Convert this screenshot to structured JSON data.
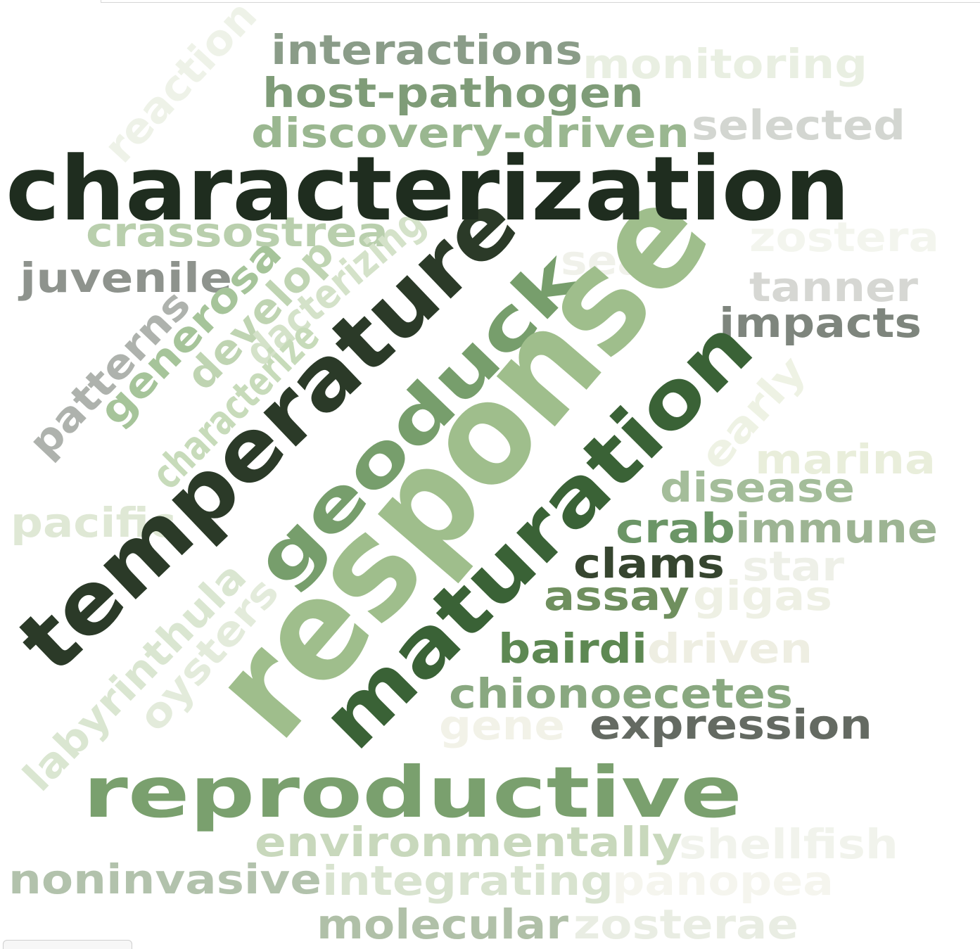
{
  "words": [
    {
      "text": "characterization",
      "color": "#1f2d1f"
    },
    {
      "text": "response",
      "color": "#9fbe8c"
    },
    {
      "text": "temperature",
      "color": "#2b3a28"
    },
    {
      "text": "maturation",
      "color": "#3a6236"
    },
    {
      "text": "geoduck",
      "color": "#779e6c"
    },
    {
      "text": "reproductive",
      "color": "#7aa06e"
    },
    {
      "text": "interactions",
      "color": "#8a9c88"
    },
    {
      "text": "monitoring",
      "color": "#e9efe2"
    },
    {
      "text": "host-pathogen",
      "color": "#7f9c78"
    },
    {
      "text": "discovery-driven",
      "color": "#9ab790"
    },
    {
      "text": "selected",
      "color": "#d3d6d1"
    },
    {
      "text": "reaction",
      "color": "#eef2e8"
    },
    {
      "text": "crassostrea",
      "color": "#b9cfad"
    },
    {
      "text": "juvenile",
      "color": "#8e938d"
    },
    {
      "text": "zostera",
      "color": "#f3f5ee"
    },
    {
      "text": "sea",
      "color": "#f0f1ea"
    },
    {
      "text": "tanner",
      "color": "#d6d7d3"
    },
    {
      "text": "impacts",
      "color": "#7e857d"
    },
    {
      "text": "generosa",
      "color": "#a6c49a"
    },
    {
      "text": "develop",
      "color": "#bfd4b2"
    },
    {
      "text": "dacterizing",
      "color": "#d4e2c9"
    },
    {
      "text": "patterns",
      "color": "#aeb2ad"
    },
    {
      "text": "characterize",
      "color": "#c7dbba"
    },
    {
      "text": "early",
      "color": "#eef2e4"
    },
    {
      "text": "marina",
      "color": "#e9eedb"
    },
    {
      "text": "disease",
      "color": "#a4bd9a"
    },
    {
      "text": "pacific",
      "color": "#dfe8d5"
    },
    {
      "text": "crab",
      "color": "#6b9566"
    },
    {
      "text": "immune",
      "color": "#9db493"
    },
    {
      "text": "clams",
      "color": "#36452f"
    },
    {
      "text": "star",
      "color": "#eef0e8"
    },
    {
      "text": "assay",
      "color": "#6f8f5e"
    },
    {
      "text": "gigas",
      "color": "#eef0e4"
    },
    {
      "text": "labyrinthula",
      "color": "#dae6d1"
    },
    {
      "text": "oysters",
      "color": "#e3ebdb"
    },
    {
      "text": "bairdi",
      "color": "#5d8852"
    },
    {
      "text": "driven",
      "color": "#eeeee2"
    },
    {
      "text": "chionoecetes",
      "color": "#89a880"
    },
    {
      "text": "gene",
      "color": "#f2f2e8"
    },
    {
      "text": "expression",
      "color": "#646a62"
    },
    {
      "text": "environmentally",
      "color": "#c8d8bc"
    },
    {
      "text": "shellfish",
      "color": "#f1f3ec"
    },
    {
      "text": "noninvasive",
      "color": "#b2c2ac"
    },
    {
      "text": "integrating",
      "color": "#d8e3cf"
    },
    {
      "text": "panopea",
      "color": "#f5f5ee"
    },
    {
      "text": "molecular",
      "color": "#b0c0a8"
    },
    {
      "text": "zosterae",
      "color": "#e9ede3"
    }
  ]
}
